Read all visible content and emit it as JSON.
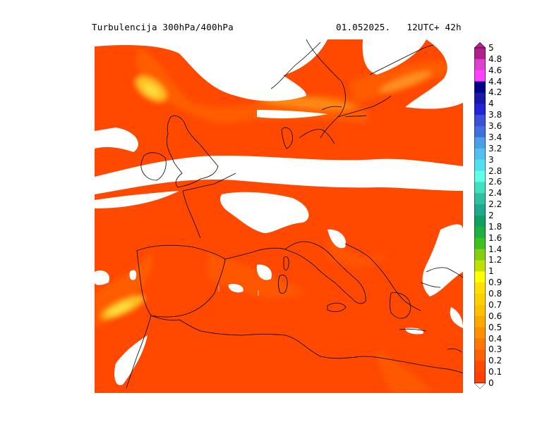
{
  "header": {
    "title": "Turbulencija 300hPa/400hPa",
    "valid_time": "01.052025.   12UTC+ 42h"
  },
  "legend": {
    "levels": [
      "5",
      "4.8",
      "4.6",
      "4.4",
      "4.2",
      "4",
      "3.8",
      "3.6",
      "3.4",
      "3.2",
      "3",
      "2.8",
      "2.6",
      "2.4",
      "2.2",
      "2",
      "1.8",
      "1.6",
      "1.4",
      "1.2",
      "1",
      "0.9",
      "0.8",
      "0.7",
      "0.6",
      "0.5",
      "0.4",
      "0.3",
      "0.2",
      "0.1",
      "0"
    ],
    "colors": [
      "#b0208a",
      "#e040d0",
      "#ff40ff",
      "#00008b",
      "#1a1aa8",
      "#2424d8",
      "#3c50d8",
      "#4070e0",
      "#4aa0e8",
      "#50c0f0",
      "#50e0f0",
      "#60ffe8",
      "#40e0c0",
      "#30c0a0",
      "#20a890",
      "#10a060",
      "#20b040",
      "#40c020",
      "#80d010",
      "#c0e000",
      "#ffff00",
      "#ffe000",
      "#ffd000",
      "#ffc000",
      "#ffa800",
      "#ff9000",
      "#ff7800",
      "#ff6000",
      "#ff4800",
      "#ff4000"
    ]
  },
  "map": {
    "base_color": "#ff4800",
    "light_color": "#ff6000",
    "medium_color": "#ff7c10",
    "high_color": "#ffd020",
    "clear_color": "#ffffff",
    "coast_color": "#000000"
  }
}
